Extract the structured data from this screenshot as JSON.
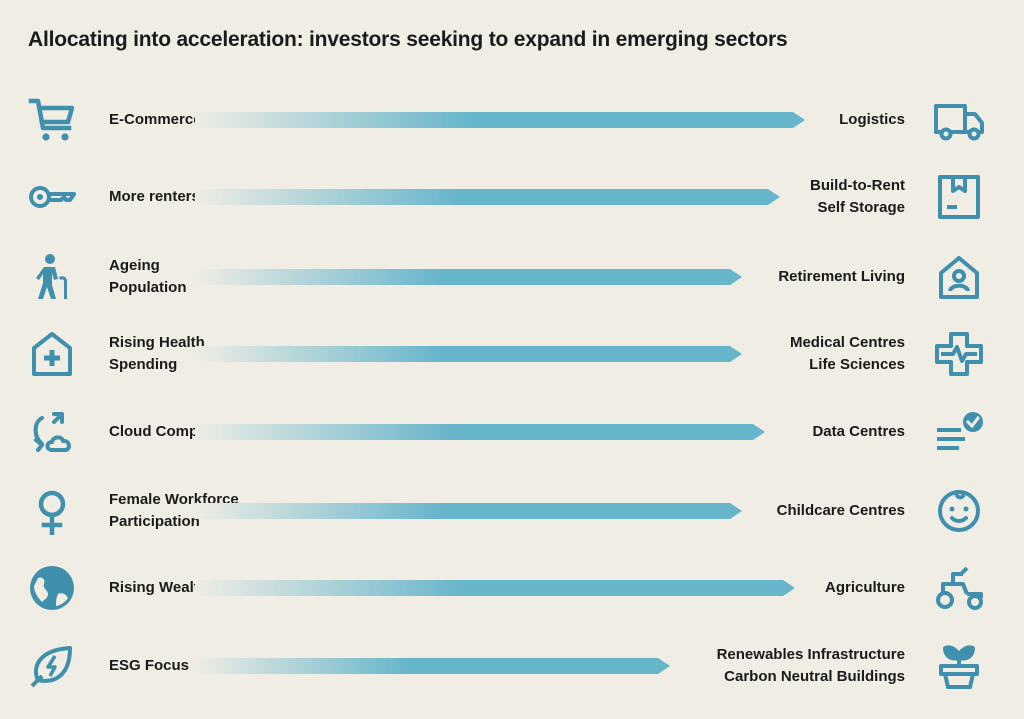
{
  "title": "Allocating into acceleration: investors seeking to expand in emerging sectors",
  "colors": {
    "accent": "#3f8fad",
    "arrow_end": "#67b5cb",
    "background": "#efede4"
  },
  "rows": [
    {
      "from_lines": [
        "E-Commerce"
      ],
      "to_lines": [
        "Logistics"
      ],
      "from_icon": "shopping-cart-icon",
      "to_icon": "delivery-truck-icon"
    },
    {
      "from_lines": [
        "More renters"
      ],
      "to_lines": [
        "Build-to-Rent",
        "Self Storage"
      ],
      "from_icon": "key-icon",
      "to_icon": "storage-box-icon"
    },
    {
      "from_lines": [
        "Ageing",
        "Population"
      ],
      "to_lines": [
        "Retirement Living"
      ],
      "from_icon": "elderly-person-icon",
      "to_icon": "house-person-icon"
    },
    {
      "from_lines": [
        "Rising Health",
        "Spending"
      ],
      "to_lines": [
        "Medical Centres",
        "Life Sciences"
      ],
      "from_icon": "hospital-icon",
      "to_icon": "medical-cross-pulse-icon"
    },
    {
      "from_lines": [
        "Cloud Computing"
      ],
      "to_lines": [
        "Data Centres"
      ],
      "from_icon": "cloud-sync-icon",
      "to_icon": "data-check-icon"
    },
    {
      "from_lines": [
        "Female Workforce",
        "Participation"
      ],
      "to_lines": [
        "Childcare Centres"
      ],
      "from_icon": "female-symbol-icon",
      "to_icon": "baby-face-icon"
    },
    {
      "from_lines": [
        "Rising Wealth of Asia"
      ],
      "to_lines": [
        "Agriculture"
      ],
      "from_icon": "globe-icon",
      "to_icon": "tractor-icon"
    },
    {
      "from_lines": [
        "ESG Focus"
      ],
      "to_lines": [
        "Renewables Infrastructure",
        "Carbon Neutral Buildings"
      ],
      "from_icon": "leaf-energy-icon",
      "to_icon": "potted-plant-icon"
    }
  ]
}
